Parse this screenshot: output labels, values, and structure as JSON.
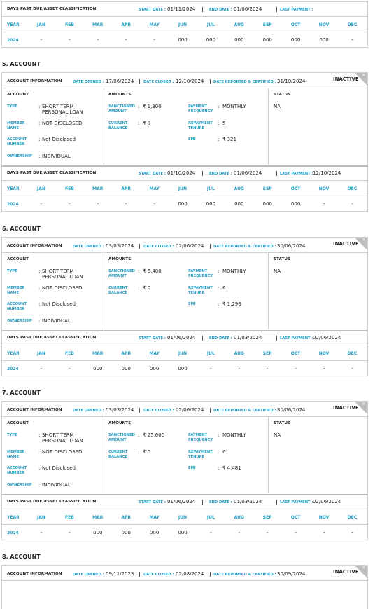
{
  "top_dpd": {
    "title": "DAYS PAST DUE/ASSET CLASSIFICATION",
    "start_label": "START DATE",
    "start": "01/11/2024",
    "end_label": "END DATE",
    "end": "01/06/2024",
    "last_label": "LAST PAYMENT",
    "columns": [
      "YEAR",
      "JAN",
      "FEB",
      "MAR",
      "APR",
      "MAY",
      "JUN",
      "JUL",
      "AUG",
      "SEP",
      "OCT",
      "NOV",
      "DEC"
    ],
    "row": [
      "2024",
      "-",
      "-",
      "-",
      "-",
      "-",
      "000",
      "000",
      "000",
      "000",
      "000",
      "000",
      "-"
    ]
  },
  "accounts": [
    {
      "heading": "5. ACCOUNT",
      "info": {
        "title": "ACCOUNT INFORMATION",
        "opened_label": "DATE OPENED",
        "opened": "17/06/2024",
        "closed_label": "DATE CLOSED",
        "closed": "12/10/2024",
        "reported_label": "DATE REPORTED & CERTIFIED",
        "reported": "31/10/2024",
        "status": "INACTIVE"
      },
      "account": {
        "title": "ACCOUNT",
        "fields": [
          [
            "TYPE",
            "SHORT TERM PERSONAL LOAN"
          ],
          [
            "MEMBER NAME",
            "NOT DISCLOSED"
          ],
          [
            "ACCOUNT NUMBER",
            "Not Disclosed"
          ],
          [
            "OWNERSHIP",
            "INDIVIDUAL"
          ]
        ]
      },
      "amounts": {
        "title": "AMOUNTS",
        "left": [
          [
            "SANCTIONED AMOUNT",
            "₹ 1,300"
          ],
          [
            "CURRENT BALANCE",
            "₹ 0"
          ]
        ],
        "right": [
          [
            "PAYMENT FREQUENCY",
            "MONTHLY"
          ],
          [
            "REPAYMENT TENURE",
            "5"
          ],
          [
            "EMI",
            "₹ 321"
          ]
        ]
      },
      "status": {
        "title": "STATUS",
        "value": "NA"
      },
      "dpd": {
        "title": "DAYS PAST DUE/ASSET CLASSIFICATION",
        "start_label": "START DATE",
        "start": "01/10/2024",
        "end_label": "END DATE",
        "end": "01/06/2024",
        "last_label": "LAST PAYMENT",
        "last": "12/10/2024",
        "columns": [
          "YEAR",
          "JAN",
          "FEB",
          "MAR",
          "APR",
          "MAY",
          "JUN",
          "JUL",
          "AUG",
          "SEP",
          "OCT",
          "NOV",
          "DEC"
        ],
        "row": [
          "2024",
          "-",
          "-",
          "-",
          "-",
          "-",
          "000",
          "000",
          "000",
          "000",
          "000",
          "-",
          "-"
        ]
      }
    },
    {
      "heading": "6. ACCOUNT",
      "info": {
        "title": "ACCOUNT INFORMATION",
        "opened_label": "DATE OPENED",
        "opened": "03/03/2024",
        "closed_label": "DATE CLOSED",
        "closed": "02/06/2024",
        "reported_label": "DATE REPORTED & CERTIFIED",
        "reported": "30/06/2024",
        "status": "INACTIVE"
      },
      "account": {
        "title": "ACCOUNT",
        "fields": [
          [
            "TYPE",
            "SHORT TERM PERSONAL LOAN"
          ],
          [
            "MEMBER NAME",
            "NOT DISCLOSED"
          ],
          [
            "ACCOUNT NUMBER",
            "Not Disclosed"
          ],
          [
            "OWNERSHIP",
            "INDIVIDUAL"
          ]
        ]
      },
      "amounts": {
        "title": "AMOUNTS",
        "left": [
          [
            "SANCTIONED AMOUNT",
            "₹ 6,400"
          ],
          [
            "CURRENT BALANCE",
            "₹ 0"
          ]
        ],
        "right": [
          [
            "PAYMENT FREQUENCY",
            "MONTHLY"
          ],
          [
            "REPAYMENT TENURE",
            "6"
          ],
          [
            "EMI",
            "₹ 1,296"
          ]
        ]
      },
      "status": {
        "title": "STATUS",
        "value": "NA"
      },
      "dpd": {
        "title": "DAYS PAST DUE/ASSET CLASSIFICATION",
        "start_label": "START DATE",
        "start": "01/06/2024",
        "end_label": "END DATE",
        "end": "01/03/2024",
        "last_label": "LAST PAYMENT",
        "last": "02/06/2024",
        "columns": [
          "YEAR",
          "JAN",
          "FEB",
          "MAR",
          "APR",
          "MAY",
          "JUN",
          "JUL",
          "AUG",
          "SEP",
          "OCT",
          "NOV",
          "DEC"
        ],
        "row": [
          "2024",
          "-",
          "-",
          "000",
          "000",
          "000",
          "000",
          "-",
          "-",
          "-",
          "-",
          "-",
          "-"
        ]
      }
    },
    {
      "heading": "7. ACCOUNT",
      "info": {
        "title": "ACCOUNT INFORMATION",
        "opened_label": "DATE OPENED",
        "opened": "03/03/2024",
        "closed_label": "DATE CLOSED",
        "closed": "02/06/2024",
        "reported_label": "DATE REPORTED & CERTIFIED",
        "reported": "30/06/2024",
        "status": "INACTIVE"
      },
      "account": {
        "title": "ACCOUNT",
        "fields": [
          [
            "TYPE",
            "SHORT TERM PERSONAL LOAN"
          ],
          [
            "MEMBER NAME",
            "NOT DISCLOSED"
          ],
          [
            "ACCOUNT NUMBER",
            "Not Disclosed"
          ],
          [
            "OWNERSHIP",
            "INDIVIDUAL"
          ]
        ]
      },
      "amounts": {
        "title": "AMOUNTS",
        "left": [
          [
            "SANCTIONED AMOUNT",
            "₹ 25,600"
          ],
          [
            "CURRENT BALANCE",
            "₹ 0"
          ]
        ],
        "right": [
          [
            "PAYMENT FREQUENCY",
            "MONTHLY"
          ],
          [
            "REPAYMENT TENURE",
            "6"
          ],
          [
            "EMI",
            "₹ 4,481"
          ]
        ]
      },
      "status": {
        "title": "STATUS",
        "value": "NA"
      },
      "dpd": {
        "title": "DAYS PAST DUE/ASSET CLASSIFICATION",
        "start_label": "START DATE",
        "start": "01/06/2024",
        "end_label": "END DATE",
        "end": "01/03/2024",
        "last_label": "LAST PAYMENT",
        "last": "02/06/2024",
        "columns": [
          "YEAR",
          "JAN",
          "FEB",
          "MAR",
          "APR",
          "MAY",
          "JUN",
          "JUL",
          "AUG",
          "SEP",
          "OCT",
          "NOV",
          "DEC"
        ],
        "row": [
          "2024",
          "-",
          "-",
          "000",
          "000",
          "000",
          "000",
          "-",
          "-",
          "-",
          "-",
          "-",
          "-"
        ]
      }
    },
    {
      "heading": "8. ACCOUNT",
      "info": {
        "title": "ACCOUNT INFORMATION",
        "opened_label": "DATE OPENED",
        "opened": "09/11/2023",
        "closed_label": "DATE CLOSED",
        "closed": "02/08/2024",
        "reported_label": "DATE REPORTED & CERTIFIED",
        "reported": "30/09/2024",
        "status": "INACTIVE"
      }
    }
  ]
}
